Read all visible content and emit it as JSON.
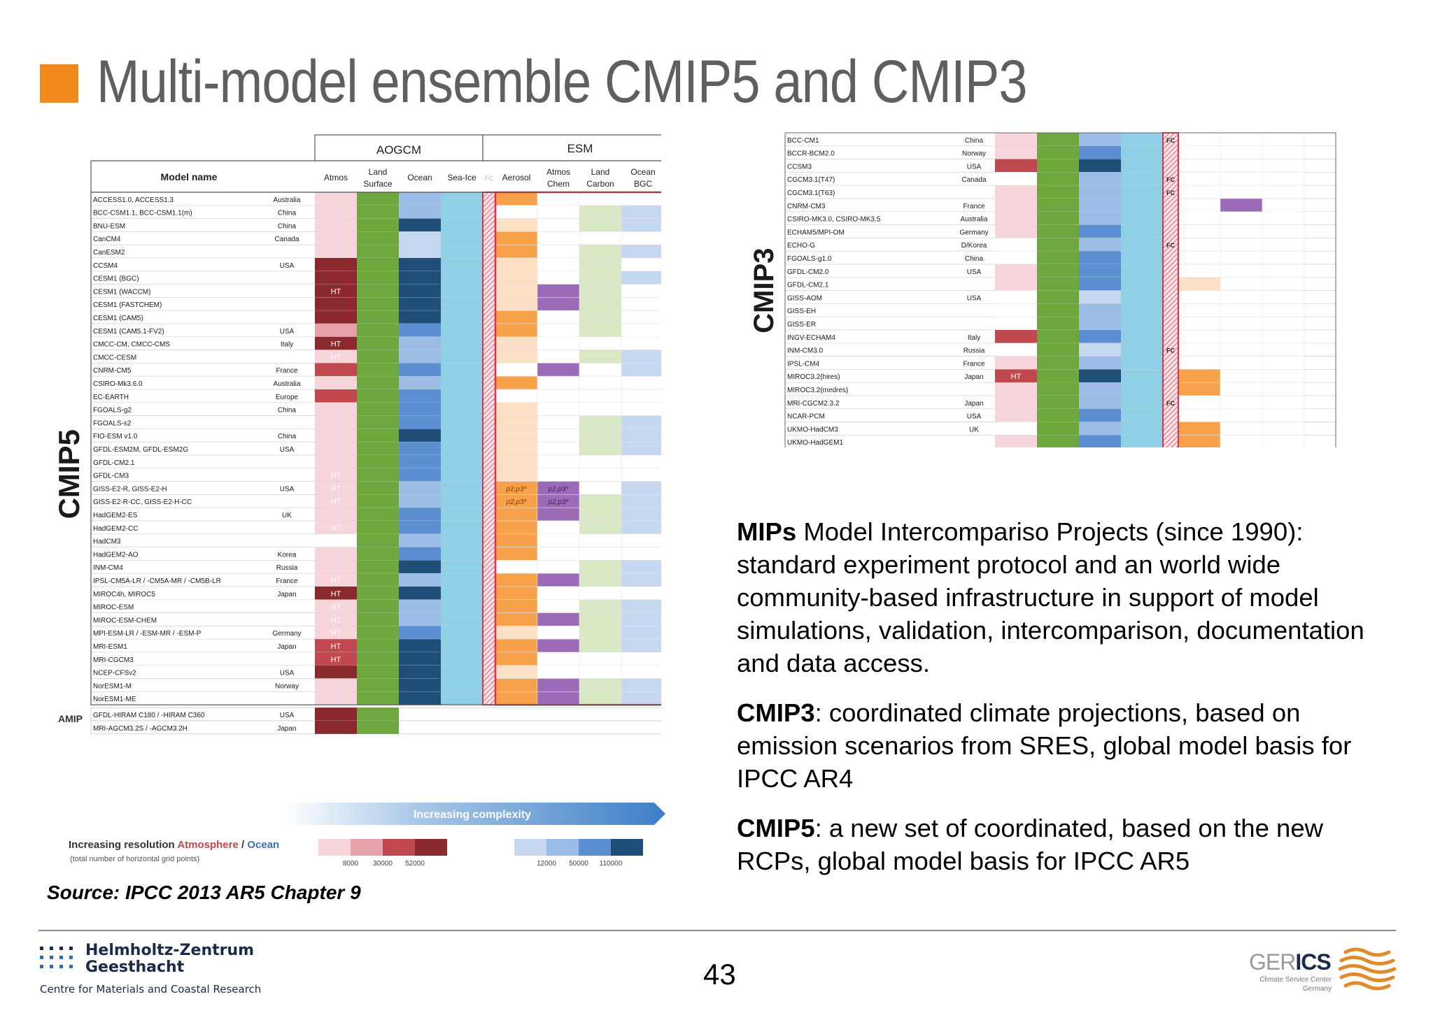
{
  "slide": {
    "title": "Multi-model ensemble CMIP5 and CMIP3",
    "page_number": "43",
    "source": "Source: IPCC 2013 AR5 Chapter 9"
  },
  "text_block": {
    "p1_bold": "MIPs",
    "p1_rest": " Model Intercompariso Projects (since 1990): standard experiment protocol and an world wide community-based infrastructure in support of model simulations, validation, intercomparison, documentation and data access.",
    "p2_bold": "CMIP3",
    "p2_rest": ": coordinated climate projections, based on emission scenarios from SRES, global model basis for IPCC AR4",
    "p3_bold": "CMIP5",
    "p3_rest": ": a new set of coordinated, based on the new RCPs, global model basis for IPCC AR5"
  },
  "footer": {
    "hzg_line1": "Helmholtz-Zentrum",
    "hzg_line2": "Geesthacht",
    "hzg_sub": "Centre for Materials and Coastal Research",
    "gerics_name_a": "GER",
    "gerics_name_b": "ICS",
    "gerics_sub1": "Climate Service Center",
    "gerics_sub2": "Germany"
  },
  "colors": {
    "accent_orange": "#f08a1c",
    "title_gray": "#5f5f5f",
    "land_green": "#6ea73e",
    "seaice_blue": "#8fd0e6",
    "esm_frame_red": "#e0324a",
    "aerosol_orange": "#f7a24a",
    "chem_purple": "#9b6bb8",
    "carbon_green": "#d8e8c4",
    "bgc_blue": "#c6d8ef",
    "atm_shades": [
      "#f6d6da",
      "#e5a2aa",
      "#c0484e",
      "#8b2a2e"
    ],
    "ocean_shades": [
      "#c6d8ef",
      "#9bbde6",
      "#5b8fd1",
      "#1f4e79"
    ]
  },
  "cmip5": {
    "side_label": "CMIP5",
    "amip_label": "AMIP",
    "group_aogcm": "AOGCM",
    "group_esm": "ESM",
    "header_model": "Model name",
    "col_headers": [
      "Atmos",
      "Land Surface",
      "Ocean",
      "Sea-Ice",
      "FC",
      "Aerosol",
      "Atmos Chem",
      "Land Carbon",
      "Ocean BGC"
    ],
    "models": [
      {
        "name": "ACCESS1.0, ACCESS1.3",
        "country": "Australia",
        "atm": 1,
        "atm_text": "",
        "oc": 2,
        "aer": 3,
        "chem": 0,
        "lc": 0,
        "bgc": 0
      },
      {
        "name": "BCC-CSM1.1, BCC-CSM1.1(m)",
        "country": "China",
        "atm": 1,
        "atm_text": "",
        "oc": 2,
        "aer": 0,
        "chem": 0,
        "lc": 1,
        "bgc": 1
      },
      {
        "name": "BNU-ESM",
        "country": "China",
        "atm": 1,
        "atm_text": "",
        "oc": 4,
        "aer": 1,
        "chem": 0,
        "lc": 1,
        "bgc": 1
      },
      {
        "name": "CanCM4",
        "country": "Canada",
        "atm": 1,
        "atm_text": "",
        "oc": 1,
        "aer": 3,
        "chem": 0,
        "lc": 0,
        "bgc": 0
      },
      {
        "name": "CanESM2",
        "country": "",
        "atm": 1,
        "atm_text": "",
        "oc": 1,
        "aer": 3,
        "chem": 0,
        "lc": 1,
        "bgc": 1
      },
      {
        "name": "CCSM4",
        "country": "USA",
        "atm": 4,
        "atm_text": "",
        "oc": 4,
        "aer": 1,
        "chem": 0,
        "lc": 1,
        "bgc": 0
      },
      {
        "name": "CESM1 (BGC)",
        "country": "",
        "atm": 4,
        "atm_text": "",
        "oc": 4,
        "aer": 1,
        "chem": 0,
        "lc": 1,
        "bgc": 1
      },
      {
        "name": "CESM1 (WACCM)",
        "country": "",
        "atm": 4,
        "atm_text": "HT",
        "oc": 4,
        "aer": 1,
        "chem": 1,
        "lc": 1,
        "bgc": 0
      },
      {
        "name": "CESM1 (FASTCHEM)",
        "country": "",
        "atm": 4,
        "atm_text": "",
        "oc": 4,
        "aer": 1,
        "chem": 1,
        "lc": 1,
        "bgc": 0
      },
      {
        "name": "CESM1 (CAM5)",
        "country": "",
        "atm": 4,
        "atm_text": "",
        "oc": 4,
        "aer": 3,
        "chem": 0,
        "lc": 1,
        "bgc": 0
      },
      {
        "name": "CESM1 (CAM5.1-FV2)",
        "country": "USA",
        "atm": 2,
        "atm_text": "",
        "oc": 3,
        "aer": 3,
        "chem": 0,
        "lc": 1,
        "bgc": 0
      },
      {
        "name": "CMCC-CM, CMCC-CMS",
        "country": "Italy",
        "atm": 4,
        "atm_text": "HT",
        "oc": 2,
        "aer": 1,
        "chem": 0,
        "lc": 0,
        "bgc": 0
      },
      {
        "name": "CMCC-CESM",
        "country": "",
        "atm": 1,
        "atm_text": "HT",
        "oc": 2,
        "aer": 1,
        "chem": 0,
        "lc": 1,
        "bgc": 1
      },
      {
        "name": "CNRM-CM5",
        "country": "France",
        "atm": 3,
        "atm_text": "",
        "oc": 3,
        "aer": 0,
        "chem": 1,
        "lc": 0,
        "bgc": 1
      },
      {
        "name": "CSIRO-Mk3.6.0",
        "country": "Australia",
        "atm": 1,
        "atm_text": "",
        "oc": 2,
        "aer": 3,
        "chem": 0,
        "lc": 0,
        "bgc": 0
      },
      {
        "name": "EC-EARTH",
        "country": "Europe",
        "atm": 3,
        "atm_text": "",
        "oc": 3,
        "aer": 0,
        "chem": 0,
        "lc": 0,
        "bgc": 0
      },
      {
        "name": "FGOALS-g2",
        "country": "China",
        "atm": 1,
        "atm_text": "",
        "oc": 3,
        "aer": 1,
        "chem": 0,
        "lc": 0,
        "bgc": 0
      },
      {
        "name": "FGOALS-s2",
        "country": "",
        "atm": 1,
        "atm_text": "",
        "oc": 3,
        "aer": 1,
        "chem": 0,
        "lc": 1,
        "bgc": 1
      },
      {
        "name": "FIO-ESM v1.0",
        "country": "China",
        "atm": 1,
        "atm_text": "",
        "oc": 4,
        "aer": 1,
        "chem": 0,
        "lc": 1,
        "bgc": 1
      },
      {
        "name": "GFDL-ESM2M, GFDL-ESM2G",
        "country": "USA",
        "atm": 1,
        "atm_text": "",
        "oc": 3,
        "aer": 1,
        "chem": 0,
        "lc": 1,
        "bgc": 1
      },
      {
        "name": "GFDL-CM2.1",
        "country": "",
        "atm": 1,
        "atm_text": "",
        "oc": 3,
        "aer": 1,
        "chem": 0,
        "lc": 0,
        "bgc": 0
      },
      {
        "name": "GFDL-CM3",
        "country": "",
        "atm": 1,
        "atm_text": "HT",
        "oc": 3,
        "aer": 1,
        "chem": 0,
        "lc": 0,
        "bgc": 0
      },
      {
        "name": "GISS-E2-R, GISS-E2-H",
        "country": "USA",
        "atm": 1,
        "atm_text": "HT",
        "oc": 2,
        "aer": 3,
        "chem": 1,
        "lc": 0,
        "bgc": 1
      },
      {
        "name": "GISS-E2-R-CC, GISS-E2-H-CC",
        "country": "",
        "atm": 1,
        "atm_text": "HT",
        "oc": 2,
        "aer": 3,
        "chem": 1,
        "lc": 1,
        "bgc": 1
      },
      {
        "name": "HadGEM2-ES",
        "country": "UK",
        "atm": 1,
        "atm_text": "",
        "oc": 3,
        "aer": 3,
        "chem": 1,
        "lc": 1,
        "bgc": 1
      },
      {
        "name": "HadGEM2-CC",
        "country": "",
        "atm": 1,
        "atm_text": "HT",
        "oc": 3,
        "aer": 3,
        "chem": 0,
        "lc": 1,
        "bgc": 1
      },
      {
        "name": "HadCM3",
        "country": "",
        "atm": 0,
        "atm_text": "",
        "oc": 2,
        "aer": 3,
        "chem": 0,
        "lc": 0,
        "bgc": 0
      },
      {
        "name": "HadGEM2-AO",
        "country": "Korea",
        "atm": 1,
        "atm_text": "",
        "oc": 3,
        "aer": 3,
        "chem": 0,
        "lc": 0,
        "bgc": 0
      },
      {
        "name": "INM-CM4",
        "country": "Russia",
        "atm": 1,
        "atm_text": "",
        "oc": 4,
        "aer": 0,
        "chem": 0,
        "lc": 1,
        "bgc": 1
      },
      {
        "name": "IPSL-CM5A-LR / -CM5A-MR / -CM5B-LR",
        "country": "France",
        "atm": 1,
        "atm_text": "HT",
        "oc": 2,
        "aer": 3,
        "chem": 1,
        "lc": 1,
        "bgc": 1
      },
      {
        "name": "MIROC4h, MIROC5",
        "country": "Japan",
        "atm": 4,
        "atm_text": "HT",
        "oc": 4,
        "aer": 3,
        "chem": 0,
        "lc": 0,
        "bgc": 0
      },
      {
        "name": "MIROC-ESM",
        "country": "",
        "atm": 1,
        "atm_text": "HT",
        "oc": 2,
        "aer": 3,
        "chem": 0,
        "lc": 1,
        "bgc": 1
      },
      {
        "name": "MIROC-ESM-CHEM",
        "country": "",
        "atm": 1,
        "atm_text": "HT",
        "oc": 2,
        "aer": 3,
        "chem": 1,
        "lc": 1,
        "bgc": 1
      },
      {
        "name": "MPI-ESM-LR / -ESM-MR / -ESM-P",
        "country": "Germany",
        "atm": 1,
        "atm_text": "HT",
        "oc": 3,
        "aer": 1,
        "chem": 0,
        "lc": 1,
        "bgc": 1
      },
      {
        "name": "MRI-ESM1",
        "country": "Japan",
        "atm": 3,
        "atm_text": "HT",
        "oc": 4,
        "aer": 3,
        "chem": 1,
        "lc": 1,
        "bgc": 1
      },
      {
        "name": "MRI-CGCM3",
        "country": "",
        "atm": 3,
        "atm_text": "HT",
        "oc": 4,
        "aer": 3,
        "chem": 0,
        "lc": 0,
        "bgc": 0
      },
      {
        "name": "NCEP-CFSv2",
        "country": "USA",
        "atm": 4,
        "atm_text": "",
        "oc": 4,
        "aer": 1,
        "chem": 0,
        "lc": 0,
        "bgc": 0
      },
      {
        "name": "NorESM1-M",
        "country": "Norway",
        "atm": 1,
        "atm_text": "",
        "oc": 4,
        "aer": 3,
        "chem": 1,
        "lc": 1,
        "bgc": 1
      },
      {
        "name": "NorESM1-ME",
        "country": "",
        "atm": 1,
        "atm_text": "",
        "oc": 4,
        "aer": 3,
        "chem": 1,
        "lc": 1,
        "bgc": 1
      }
    ],
    "amip_models": [
      {
        "name": "GFDL-HIRAM C180 / -HIRAM C360",
        "country": "USA",
        "atm": 4
      },
      {
        "name": "MRI-AGCM3.2S / -AGCM3.2H",
        "country": "Japan",
        "atm": 4
      }
    ],
    "complexity_label": "Increasing complexity",
    "legend_text_a": "Increasing resolution ",
    "legend_text_b": "Atmosphere",
    "legend_text_c": " / ",
    "legend_text_d": "Ocean",
    "legend_sub": "(total number of horizontal grid points)",
    "legend_atm_ticks": [
      "8000",
      "30000",
      "52000"
    ],
    "legend_oc_ticks": [
      "12000",
      "50000",
      "110000"
    ],
    "giss_note": "p2,p3*"
  },
  "cmip3": {
    "side_label": "CMIP3",
    "models": [
      {
        "name": "BCC-CM1",
        "country": "China",
        "atm": 1,
        "oc": 2,
        "fc": "FC",
        "aer": 0,
        "chem": 0
      },
      {
        "name": "BCCR-BCM2.0",
        "country": "Norway",
        "atm": 1,
        "oc": 3,
        "fc": "",
        "aer": 0,
        "chem": 0
      },
      {
        "name": "CCSM3",
        "country": "USA",
        "atm": 3,
        "oc": 4,
        "fc": "",
        "aer": 0,
        "chem": 0
      },
      {
        "name": "CGCM3.1(T47)",
        "country": "Canada",
        "atm": 0,
        "oc": 2,
        "fc": "FC",
        "aer": 0,
        "chem": 0
      },
      {
        "name": "CGCM3.1(T63)",
        "country": "",
        "atm": 1,
        "oc": 2,
        "fc": "FC",
        "aer": 0,
        "chem": 0
      },
      {
        "name": "CNRM-CM3",
        "country": "France",
        "atm": 1,
        "oc": 2,
        "fc": "",
        "aer": 0,
        "chem": 1
      },
      {
        "name": "CSIRO-MK3.0, CSIRO-MK3.5",
        "country": "Australia",
        "atm": 1,
        "oc": 2,
        "fc": "",
        "aer": 0,
        "chem": 0
      },
      {
        "name": "ECHAM5/MPI-OM",
        "country": "Germany",
        "atm": 1,
        "oc": 3,
        "fc": "",
        "aer": 0,
        "chem": 0
      },
      {
        "name": "ECHO-G",
        "country": "D/Korea",
        "atm": 0,
        "oc": 2,
        "fc": "FC",
        "aer": 0,
        "chem": 0
      },
      {
        "name": "FGOALS-g1.0",
        "country": "China",
        "atm": 0,
        "oc": 3,
        "fc": "",
        "aer": 0,
        "chem": 0
      },
      {
        "name": "GFDL-CM2.0",
        "country": "USA",
        "atm": 1,
        "oc": 3,
        "fc": "",
        "aer": 0,
        "chem": 0
      },
      {
        "name": "GFDL-CM2.1",
        "country": "",
        "atm": 1,
        "oc": 3,
        "fc": "",
        "aer": 1,
        "chem": 0
      },
      {
        "name": "GISS-AOM",
        "country": "USA",
        "atm": 0,
        "oc": 1,
        "fc": "",
        "aer": 0,
        "chem": 0
      },
      {
        "name": "GISS-EH",
        "country": "",
        "atm": 0,
        "oc": 2,
        "fc": "",
        "aer": 0,
        "chem": 0
      },
      {
        "name": "GISS-ER",
        "country": "",
        "atm": 0,
        "oc": 2,
        "fc": "",
        "aer": 0,
        "chem": 0
      },
      {
        "name": "INGV-ECHAM4",
        "country": "Italy",
        "atm": 3,
        "oc": 3,
        "fc": "",
        "aer": 0,
        "chem": 0
      },
      {
        "name": "INM-CM3.0",
        "country": "Russia",
        "atm": 0,
        "oc": 1,
        "fc": "FC",
        "aer": 0,
        "chem": 0
      },
      {
        "name": "IPSL-CM4",
        "country": "France",
        "atm": 1,
        "oc": 2,
        "fc": "",
        "aer": 0,
        "chem": 0
      },
      {
        "name": "MIROC3.2(hires)",
        "country": "Japan",
        "atm": 3,
        "atm_text": "HT",
        "oc": 4,
        "fc": "",
        "aer": 2,
        "chem": 0
      },
      {
        "name": "MIROC3.2(medres)",
        "country": "",
        "atm": 1,
        "oc": 2,
        "fc": "",
        "aer": 2,
        "chem": 0
      },
      {
        "name": "MRI-CGCM2.3.2",
        "country": "Japan",
        "atm": 1,
        "oc": 2,
        "fc": "FC",
        "aer": 0,
        "chem": 0
      },
      {
        "name": "NCAR-PCM",
        "country": "USA",
        "atm": 1,
        "oc": 3,
        "fc": "",
        "aer": 0,
        "chem": 0
      },
      {
        "name": "UKMO-HadCM3",
        "country": "UK",
        "atm": 0,
        "oc": 2,
        "fc": "",
        "aer": 2,
        "chem": 0
      },
      {
        "name": "UKMO-HadGEM1",
        "country": "",
        "atm": 1,
        "oc": 3,
        "fc": "",
        "aer": 2,
        "chem": 0
      }
    ]
  }
}
